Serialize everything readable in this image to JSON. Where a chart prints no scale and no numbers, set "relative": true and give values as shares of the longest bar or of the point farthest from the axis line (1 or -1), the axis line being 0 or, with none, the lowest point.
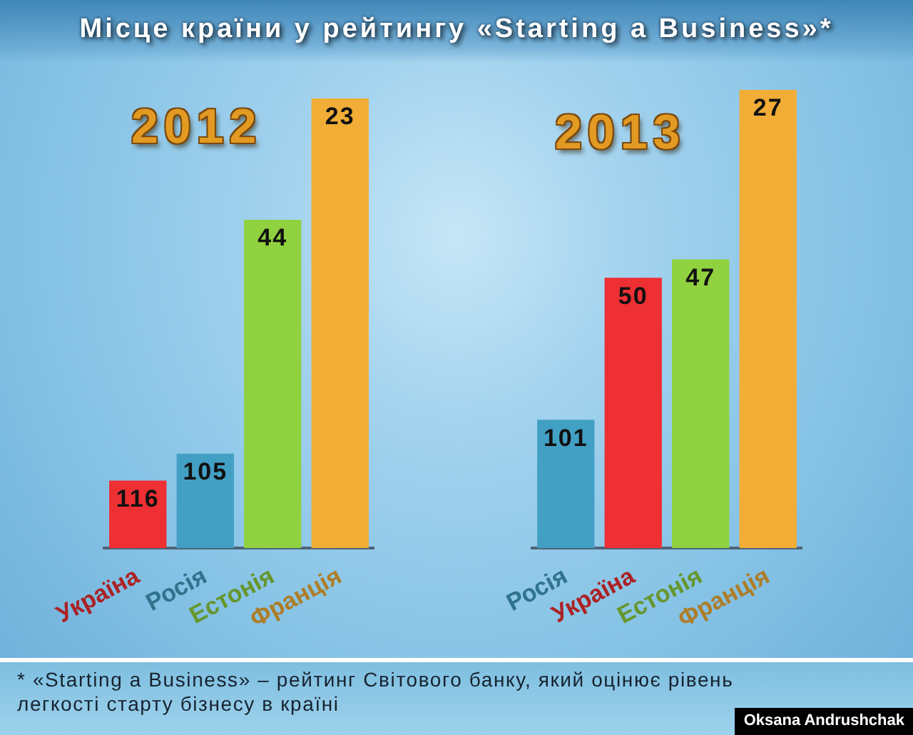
{
  "chart_data": [
    {
      "type": "bar",
      "title": "Місце країни у рейтингу «Starting a Business»*",
      "subtitle": "2012",
      "categories": [
        "Україна",
        "Росія",
        "Естонія",
        "Франція"
      ],
      "values": [
        0.15,
        0.21,
        0.73,
        1
      ],
      "colors": [
        "#ee2f33",
        "#42a0c4",
        "#8fd13f",
        "#f1ad36"
      ],
      "relative": true,
      "annotations": [
        "* «Starting a Business» – рейтинг Світового банку, який оцінює рівень легкості старту бізнесу в країні",
        "Oksana Andrushchak",
        {
          "text": "116",
          "x": "Україна",
          "y": 0.15
        },
        {
          "text": "105",
          "x": "Росія",
          "y": 0.21
        },
        {
          "text": "44",
          "x": "Естонія",
          "y": 0.73
        },
        {
          "text": "23",
          "x": "Франція",
          "y": 1
        }
      ]
    },
    {
      "type": "bar",
      "subtitle": "2013",
      "categories": [
        "Росія",
        "Україна",
        "Естонія",
        "Франція"
      ],
      "values": [
        0.28,
        0.59,
        0.63,
        1
      ],
      "colors": [
        "#42a0c4",
        "#ee2f33",
        "#8fd13f",
        "#f1ad36"
      ],
      "relative": true,
      "annotations": [
        {
          "text": "101",
          "x": "Росія",
          "y": 0.28
        },
        {
          "text": "50",
          "x": "Україна",
          "y": 0.59
        },
        {
          "text": "47",
          "x": "Естонія",
          "y": 0.63
        },
        {
          "text": "27",
          "x": "Франція",
          "y": 1
        }
      ]
    }
  ]
}
